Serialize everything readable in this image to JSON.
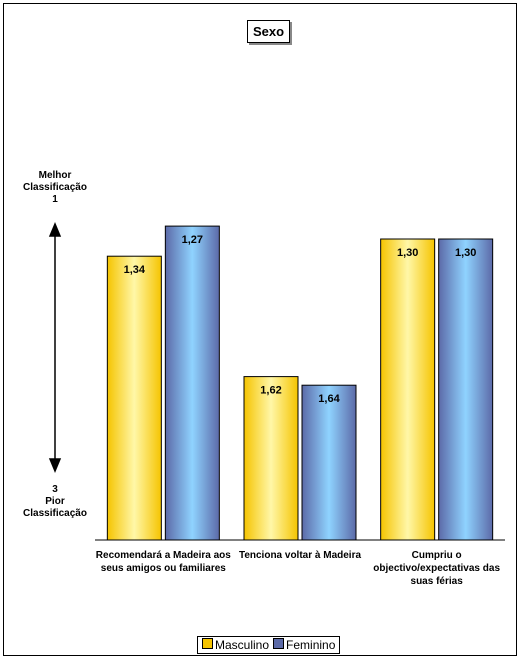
{
  "chart_data": {
    "type": "bar",
    "title": "Sexo",
    "categories": [
      "Recomendará a Madeira aos seus amigos ou familiares",
      "Tenciona voltar à Madeira",
      "Cumpriu o objectivo/expectativas das suas férias"
    ],
    "series": [
      {
        "name": "Masculino",
        "color": "#f5c400",
        "values": [
          1.34,
          1.62,
          1.3
        ],
        "value_labels": [
          "1,34",
          "1,62",
          "1,30"
        ]
      },
      {
        "name": "Feminino",
        "color": "#5c6aa8",
        "values": [
          1.27,
          1.64,
          1.3
        ],
        "value_labels": [
          "1,27",
          "1,64",
          "1,30"
        ]
      }
    ],
    "ylim": [
      2,
      1
    ],
    "annotations": {
      "top": [
        "Melhor",
        "Classificação",
        "1"
      ],
      "bottom": [
        "3",
        "Pior",
        "Classificação"
      ]
    },
    "legend": "bottom"
  }
}
